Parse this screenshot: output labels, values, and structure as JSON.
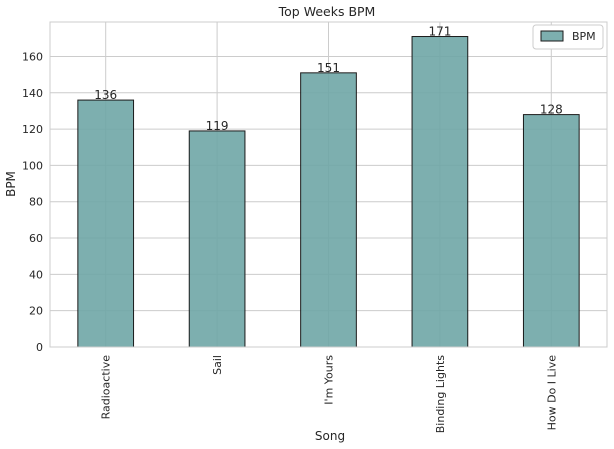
{
  "chart_data": {
    "type": "bar",
    "title": "Top Weeks BPM",
    "xlabel": "Song",
    "ylabel": "BPM",
    "categories": [
      "Radioactive",
      "Sail",
      "I'm Yours",
      "Binding Lights",
      "How Do I Live"
    ],
    "series": [
      {
        "name": "BPM",
        "values": [
          136,
          119,
          151,
          171,
          128
        ]
      }
    ],
    "data_labels": [
      "136",
      "119",
      "151",
      "171",
      "128"
    ],
    "ylim": [
      0,
      179
    ],
    "yticks": [
      0,
      20,
      40,
      60,
      80,
      100,
      120,
      140,
      160
    ],
    "grid": true,
    "legend": {
      "position": "top-right"
    },
    "colors": {
      "bar_fill": "#6fa6a6",
      "bar_edge": "#1a1a1a",
      "grid": "#cccccc",
      "spine": "#cccccc"
    }
  }
}
